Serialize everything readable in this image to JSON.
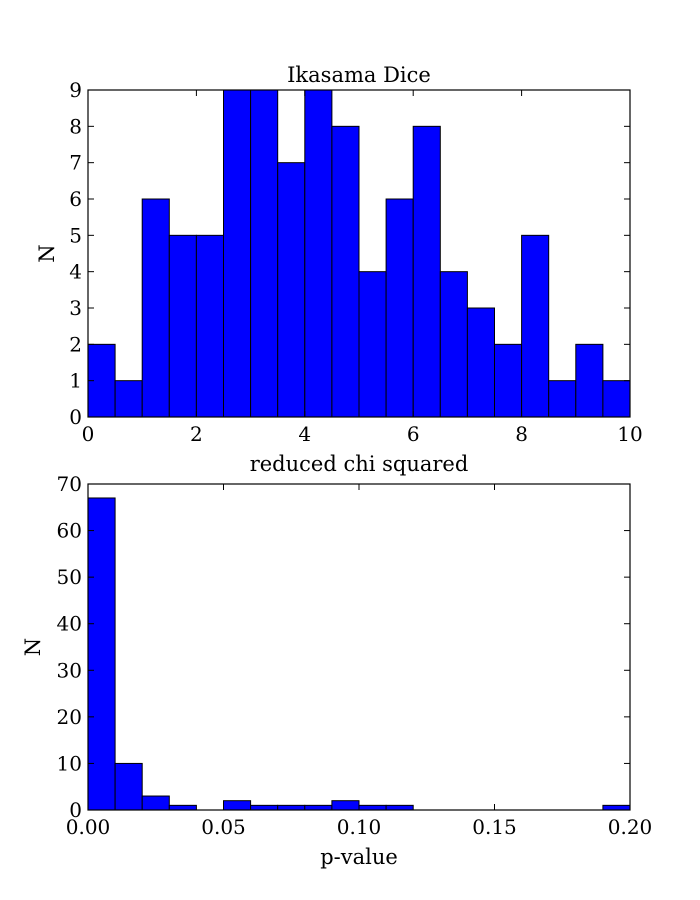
{
  "colors": {
    "bar_fill": "#0000ff",
    "bar_edge": "#000000",
    "background": "#ffffff"
  },
  "chart_data": [
    {
      "type": "bar",
      "title": "Ikasama Dice",
      "xlabel": "reduced chi squared",
      "ylabel": "N",
      "xlim": [
        0,
        10
      ],
      "ylim": [
        0,
        9
      ],
      "grid": false,
      "bin_edges": [
        0,
        0.5,
        1,
        1.5,
        2,
        2.5,
        3,
        3.5,
        4,
        4.5,
        5,
        5.5,
        6,
        6.5,
        7,
        7.5,
        8,
        8.5,
        9,
        9.5,
        10
      ],
      "values": [
        2,
        1,
        6,
        5,
        5,
        9,
        9,
        7,
        9,
        8,
        4,
        6,
        8,
        4,
        3,
        2,
        5,
        1,
        2,
        1
      ],
      "xticks": [
        0,
        2,
        4,
        6,
        8,
        10
      ],
      "xtick_labels": [
        "0",
        "2",
        "4",
        "6",
        "8",
        "10"
      ],
      "yticks": [
        0,
        1,
        2,
        3,
        4,
        5,
        6,
        7,
        8,
        9
      ],
      "ytick_labels": [
        "0",
        "1",
        "2",
        "3",
        "4",
        "5",
        "6",
        "7",
        "8",
        "9"
      ]
    },
    {
      "type": "bar",
      "title": "",
      "xlabel": "p-value",
      "ylabel": "N",
      "xlim": [
        0,
        0.2
      ],
      "ylim": [
        0,
        70
      ],
      "grid": false,
      "bin_edges": [
        0,
        0.01,
        0.02,
        0.03,
        0.04,
        0.05,
        0.06,
        0.07,
        0.08,
        0.09,
        0.1,
        0.11,
        0.12,
        0.13,
        0.14,
        0.15,
        0.16,
        0.17,
        0.18,
        0.19,
        0.2
      ],
      "values": [
        67,
        10,
        3,
        1,
        0,
        2,
        1,
        1,
        1,
        2,
        1,
        1,
        0,
        0,
        0,
        0,
        0,
        0,
        0,
        1
      ],
      "xticks": [
        0,
        0.05,
        0.1,
        0.15,
        0.2
      ],
      "xtick_labels": [
        "0.00",
        "0.05",
        "0.10",
        "0.15",
        "0.20"
      ],
      "yticks": [
        0,
        10,
        20,
        30,
        40,
        50,
        60,
        70
      ],
      "ytick_labels": [
        "0",
        "10",
        "20",
        "30",
        "40",
        "50",
        "60",
        "70"
      ]
    }
  ]
}
